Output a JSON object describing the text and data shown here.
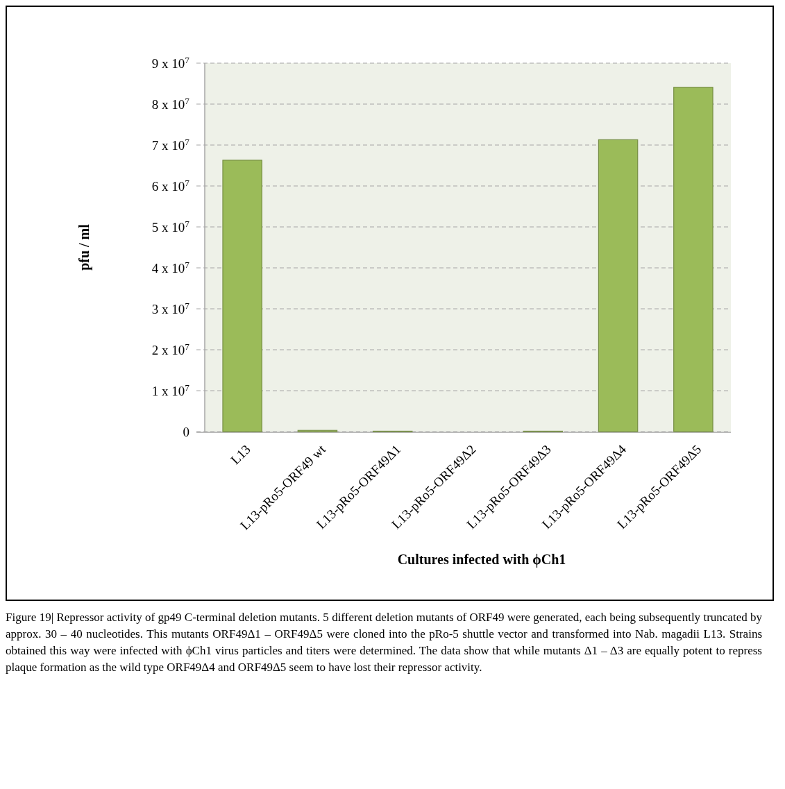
{
  "chart_data": {
    "type": "bar",
    "xlabel": "Cultures infected with ϕCh1",
    "ylabel": "pfu / ml",
    "categories": [
      "L13",
      "L13-pRo5-ORF49 wt",
      "L13-pRo5-ORF49Δ1",
      "L13-pRo5-ORF49Δ2",
      "L13-pRo5-ORF49Δ3",
      "L13-pRo5-ORF49Δ4",
      "L13-pRo5-ORF49Δ5"
    ],
    "values": [
      66300000,
      300000,
      100000,
      0,
      100000,
      71300000,
      84100000
    ],
    "color": "#9bbb59",
    "ylim": [
      0,
      90000000
    ],
    "yticks": [
      0,
      {
        "value": 10000000,
        "label": "1 x 10$^{7}$"
      },
      {
        "value": 20000000,
        "label": "2 x 10$^{7}$"
      },
      {
        "value": 30000000,
        "label": "3 x 10$^{7}$"
      },
      {
        "value": 40000000,
        "label": "4 x 10$^{7}$"
      },
      {
        "value": 50000000,
        "label": "5 x 10$^{7}$"
      },
      {
        "value": 60000000,
        "label": "6 x 10$^{7}$"
      },
      {
        "value": 70000000,
        "label": "7 x 10$^{7}$"
      },
      {
        "value": 80000000,
        "label": "8 x 10$^{7}$"
      },
      {
        "value": 90000000,
        "label": "9 x 10$^{7}$"
      }
    ],
    "grid": "y",
    "annotations": [
      "Figure 19| Repressor activity of gp49 C-terminal deletion mutants. 5 different deletion mutants of ORF49 were generated, each being subsequently truncated by approx. 30 – 40 nucleotides. This mutants ORF49Δ1 – ORF49Δ5 were cloned into the pRo-5 shuttle vector and transformed into Nab. magadii L13. Strains obtained this way were infected with ϕCh1 virus particles and titers were determined. The data show that while mutants Δ1 – Δ3 are equally potent to repress plaque formation as the wild type ORF49Δ4 and ORF49Δ5 seem to have lost their repressor activity."
    ]
  }
}
